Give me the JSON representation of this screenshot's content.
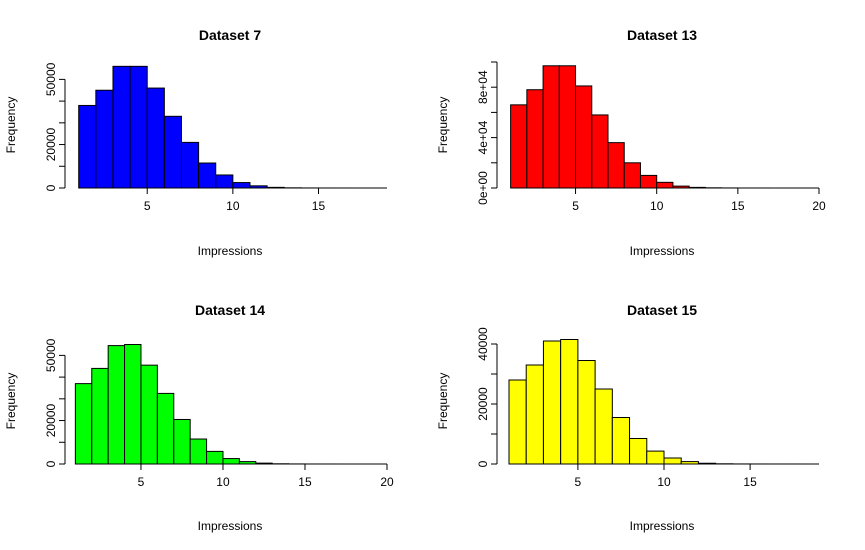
{
  "chart_data": [
    {
      "type": "bar",
      "title": "Dataset 7",
      "xlabel": "Impressions",
      "ylabel": "Frequency",
      "fill": "#0000ff",
      "bin_width": 1,
      "x": [
        1,
        2,
        3,
        4,
        5,
        6,
        7,
        8,
        9,
        10,
        11,
        12,
        13,
        14,
        15,
        16,
        17,
        18
      ],
      "values": [
        38000,
        45000,
        56000,
        56000,
        46000,
        33000,
        21000,
        11500,
        6000,
        2500,
        1000,
        300,
        80,
        20,
        10,
        5,
        2,
        1
      ],
      "xlim": [
        0.9,
        19
      ],
      "xticks": [
        "5",
        "10",
        "15"
      ],
      "xtick_values": [
        5,
        10,
        15
      ],
      "ylim": [
        0,
        58000
      ],
      "yticks": [
        "0",
        "20000",
        "50000"
      ],
      "ytick_values": [
        0,
        20000,
        50000
      ],
      "yticks_unlabeled": [
        10000,
        30000,
        40000
      ]
    },
    {
      "type": "bar",
      "title": "Dataset 13",
      "xlabel": "Impressions",
      "ylabel": "Frequency",
      "fill": "#ff0000",
      "bin_width": 1,
      "x": [
        1,
        2,
        3,
        4,
        5,
        6,
        7,
        8,
        9,
        10,
        11,
        12,
        13,
        14,
        15,
        16,
        17,
        18
      ],
      "values": [
        66000,
        78000,
        97000,
        97000,
        81000,
        58000,
        36000,
        20000,
        10000,
        4500,
        1500,
        500,
        150,
        40,
        10,
        5,
        2,
        1
      ],
      "xlim": [
        0.9,
        20
      ],
      "xticks": [
        "5",
        "10",
        "15",
        "20"
      ],
      "xtick_values": [
        5,
        10,
        15,
        20
      ],
      "ylim": [
        0,
        100000
      ],
      "yticks": [
        "0e+00",
        "4e+04",
        "8e+04"
      ],
      "ytick_values": [
        0,
        40000,
        80000
      ],
      "yticks_unlabeled": [
        20000,
        60000,
        100000
      ]
    },
    {
      "type": "bar",
      "title": "Dataset 14",
      "xlabel": "Impressions",
      "ylabel": "Frequency",
      "fill": "#00ff00",
      "bin_width": 1,
      "x": [
        1,
        2,
        3,
        4,
        5,
        6,
        7,
        8,
        9,
        10,
        11,
        12,
        13,
        14,
        15,
        16,
        17,
        18,
        19
      ],
      "values": [
        37000,
        44000,
        54500,
        55000,
        45500,
        32500,
        20500,
        11500,
        5800,
        2500,
        1100,
        400,
        100,
        30,
        10,
        5,
        2,
        1,
        1
      ],
      "xlim": [
        1.1,
        20
      ],
      "xticks": [
        "5",
        "10",
        "15",
        "20"
      ],
      "xtick_values": [
        5,
        10,
        15,
        20
      ],
      "ylim": [
        0,
        58000
      ],
      "yticks": [
        "0",
        "20000",
        "50000"
      ],
      "ytick_values": [
        0,
        20000,
        50000
      ],
      "yticks_unlabeled": [
        10000,
        30000,
        40000
      ]
    },
    {
      "type": "bar",
      "title": "Dataset 15",
      "xlabel": "Impressions",
      "ylabel": "Frequency",
      "fill": "#ffff00",
      "bin_width": 1,
      "x": [
        1,
        2,
        3,
        4,
        5,
        6,
        7,
        8,
        9,
        10,
        11,
        12,
        13,
        14,
        15,
        16,
        17,
        18
      ],
      "values": [
        28000,
        33000,
        41000,
        41500,
        34500,
        25000,
        15500,
        8500,
        4300,
        2000,
        800,
        250,
        70,
        20,
        10,
        5,
        2,
        1
      ],
      "xlim": [
        1.0,
        19
      ],
      "xticks": [
        "5",
        "10",
        "15"
      ],
      "xtick_values": [
        5,
        10,
        15
      ],
      "ylim": [
        0,
        42000
      ],
      "yticks": [
        "0",
        "20000",
        "40000"
      ],
      "ytick_values": [
        0,
        20000,
        40000
      ],
      "yticks_unlabeled": [
        10000,
        30000
      ]
    }
  ]
}
